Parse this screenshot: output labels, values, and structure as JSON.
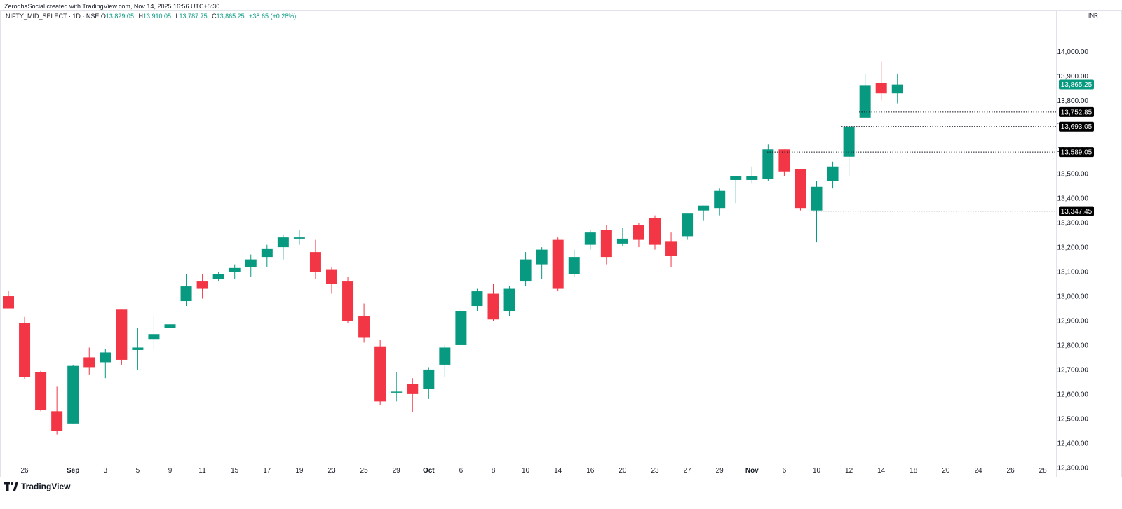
{
  "header": {
    "credit": "ZerodhaSocial created with TradingView.com, Nov 14, 2025 16:56 UTC+5:30",
    "symbol": "NIFTY_MID_SELECT · 1D · NSE",
    "open_label": "O",
    "open": "13,829.05",
    "high_label": "H",
    "high": "13,910.05",
    "low_label": "L",
    "low": "13,787.75",
    "close_label": "C",
    "close": "13,865.25",
    "change": "+38.65 (+0.28%)",
    "currency": "INR"
  },
  "brand": {
    "name": "TradingView"
  },
  "colors": {
    "up": "#089981",
    "down": "#f23645",
    "tag_dark": "#000000",
    "last_price": "#089981"
  },
  "chart_data": {
    "type": "candlestick",
    "y_axis": {
      "ticks": [
        "14,000.00",
        "13,900.00",
        "13,800.00",
        "13,700.00",
        "13,600.00",
        "13,500.00",
        "13,400.00",
        "13,300.00",
        "13,200.00",
        "13,100.00",
        "13,000.00",
        "12,900.00",
        "12,800.00",
        "12,700.00",
        "12,600.00",
        "12,500.00",
        "12,400.00",
        "12,300.00"
      ],
      "tick_values": [
        14000,
        13900,
        13800,
        13700,
        13600,
        13500,
        13400,
        13300,
        13200,
        13100,
        13000,
        12900,
        12800,
        12700,
        12600,
        12500,
        12400,
        12300
      ],
      "range": [
        12265,
        14170
      ]
    },
    "x_axis": {
      "labels": [
        "26",
        "Sep",
        "3",
        "5",
        "9",
        "11",
        "15",
        "17",
        "19",
        "23",
        "25",
        "29",
        "Oct",
        "6",
        "8",
        "10",
        "14",
        "16",
        "20",
        "23",
        "27",
        "29",
        "Nov",
        "6",
        "10",
        "12",
        "14",
        "18",
        "20",
        "24",
        "26",
        "28"
      ],
      "label_index": [
        1,
        4,
        6,
        8,
        10,
        12,
        14,
        16,
        18,
        20,
        22,
        24,
        26,
        28,
        30,
        32,
        34,
        36,
        38,
        40,
        42,
        44,
        46,
        48,
        50,
        52,
        54,
        56,
        58,
        60,
        62,
        64
      ],
      "bold_labels": [
        "Sep",
        "Oct",
        "Nov"
      ]
    },
    "candles": [
      {
        "o": 13000,
        "h": 13020,
        "l": 12950,
        "c": 12950
      },
      {
        "o": 12890,
        "h": 12915,
        "l": 12660,
        "c": 12670
      },
      {
        "o": 12690,
        "h": 12695,
        "l": 12530,
        "c": 12535
      },
      {
        "o": 12530,
        "h": 12630,
        "l": 12435,
        "c": 12450
      },
      {
        "o": 12480,
        "h": 12720,
        "l": 12480,
        "c": 12715
      },
      {
        "o": 12750,
        "h": 12790,
        "l": 12680,
        "c": 12710
      },
      {
        "o": 12730,
        "h": 12785,
        "l": 12665,
        "c": 12770
      },
      {
        "o": 12945,
        "h": 12945,
        "l": 12720,
        "c": 12740
      },
      {
        "o": 12780,
        "h": 12870,
        "l": 12700,
        "c": 12790
      },
      {
        "o": 12825,
        "h": 12920,
        "l": 12780,
        "c": 12845
      },
      {
        "o": 12870,
        "h": 12895,
        "l": 12820,
        "c": 12885
      },
      {
        "o": 12980,
        "h": 13090,
        "l": 12960,
        "c": 13040
      },
      {
        "o": 13060,
        "h": 13090,
        "l": 12990,
        "c": 13030
      },
      {
        "o": 13070,
        "h": 13100,
        "l": 13060,
        "c": 13090
      },
      {
        "o": 13100,
        "h": 13130,
        "l": 13070,
        "c": 13115
      },
      {
        "o": 13120,
        "h": 13170,
        "l": 13080,
        "c": 13150
      },
      {
        "o": 13160,
        "h": 13210,
        "l": 13120,
        "c": 13195
      },
      {
        "o": 13200,
        "h": 13250,
        "l": 13150,
        "c": 13240
      },
      {
        "o": 13235,
        "h": 13270,
        "l": 13210,
        "c": 13240
      },
      {
        "o": 13180,
        "h": 13230,
        "l": 13070,
        "c": 13100
      },
      {
        "o": 13110,
        "h": 13120,
        "l": 13010,
        "c": 13050
      },
      {
        "o": 13060,
        "h": 13080,
        "l": 12890,
        "c": 12900
      },
      {
        "o": 12920,
        "h": 12970,
        "l": 12810,
        "c": 12830
      },
      {
        "o": 12795,
        "h": 12820,
        "l": 12555,
        "c": 12570
      },
      {
        "o": 12610,
        "h": 12690,
        "l": 12570,
        "c": 12610
      },
      {
        "o": 12640,
        "h": 12665,
        "l": 12525,
        "c": 12600
      },
      {
        "o": 12620,
        "h": 12710,
        "l": 12580,
        "c": 12700
      },
      {
        "o": 12720,
        "h": 12800,
        "l": 12670,
        "c": 12790
      },
      {
        "o": 12800,
        "h": 12945,
        "l": 12800,
        "c": 12940
      },
      {
        "o": 12960,
        "h": 13030,
        "l": 12940,
        "c": 13020
      },
      {
        "o": 13010,
        "h": 13050,
        "l": 12900,
        "c": 12905
      },
      {
        "o": 12940,
        "h": 13040,
        "l": 12920,
        "c": 13030
      },
      {
        "o": 13060,
        "h": 13180,
        "l": 13040,
        "c": 13150
      },
      {
        "o": 13130,
        "h": 13200,
        "l": 13070,
        "c": 13190
      },
      {
        "o": 13230,
        "h": 13240,
        "l": 13020,
        "c": 13030
      },
      {
        "o": 13090,
        "h": 13190,
        "l": 13080,
        "c": 13160
      },
      {
        "o": 13210,
        "h": 13270,
        "l": 13190,
        "c": 13260
      },
      {
        "o": 13270,
        "h": 13290,
        "l": 13130,
        "c": 13160
      },
      {
        "o": 13215,
        "h": 13280,
        "l": 13205,
        "c": 13235
      },
      {
        "o": 13290,
        "h": 13300,
        "l": 13200,
        "c": 13230
      },
      {
        "o": 13320,
        "h": 13330,
        "l": 13190,
        "c": 13210
      },
      {
        "o": 13225,
        "h": 13260,
        "l": 13120,
        "c": 13165
      },
      {
        "o": 13245,
        "h": 13340,
        "l": 13230,
        "c": 13340
      },
      {
        "o": 13350,
        "h": 13370,
        "l": 13310,
        "c": 13370
      },
      {
        "o": 13360,
        "h": 13440,
        "l": 13330,
        "c": 13430
      },
      {
        "o": 13475,
        "h": 13490,
        "l": 13380,
        "c": 13490
      },
      {
        "o": 13475,
        "h": 13530,
        "l": 13460,
        "c": 13490
      },
      {
        "o": 13480,
        "h": 13620,
        "l": 13470,
        "c": 13600
      },
      {
        "o": 13600,
        "h": 13600,
        "l": 13490,
        "c": 13510
      },
      {
        "o": 13520,
        "h": 13520,
        "l": 13350,
        "c": 13360
      },
      {
        "o": 13350,
        "h": 13470,
        "l": 13220,
        "c": 13447
      },
      {
        "o": 13470,
        "h": 13550,
        "l": 13440,
        "c": 13530
      },
      {
        "o": 13570,
        "h": 13695,
        "l": 13490,
        "c": 13693
      },
      {
        "o": 13730,
        "h": 13910,
        "l": 13730,
        "c": 13860
      },
      {
        "o": 13870,
        "h": 13960,
        "l": 13800,
        "c": 13829
      },
      {
        "o": 13829,
        "h": 13910,
        "l": 13788,
        "c": 13865
      }
    ],
    "price_lines": [
      {
        "value": 13752.85,
        "label": "13,752.85"
      },
      {
        "value": 13693.05,
        "label": "13,693.05"
      },
      {
        "value": 13589.05,
        "label": "13,589.05"
      },
      {
        "value": 13347.45,
        "label": "13,347.45"
      }
    ],
    "last_price": {
      "value": 13865.25,
      "label": "13,865.25"
    }
  }
}
